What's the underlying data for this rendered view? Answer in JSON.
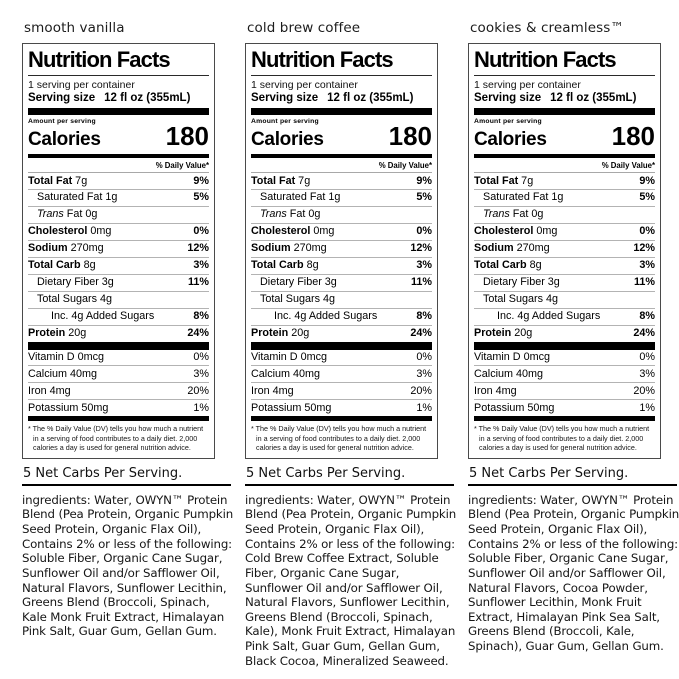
{
  "page": {
    "background": "#ffffff",
    "text_color": "#000000"
  },
  "label": {
    "title": "Nutrition Facts",
    "servings_per_container": "1 serving per container",
    "serving_size_label": "Serving size",
    "serving_size_value": "12 fl oz (355mL)",
    "amount_per_serving": "Amount per serving",
    "calories_label": "Calories",
    "calories_value": "180",
    "daily_value_header": "% Daily Value*",
    "rows": [
      {
        "b": "Total Fat",
        "i": "",
        "r": " 7g",
        "dv": "9%"
      },
      {
        "b": "",
        "i": "",
        "r": "Saturated Fat 1g",
        "dv": "5%"
      },
      {
        "b": "",
        "i": "Trans",
        "r": " Fat 0g",
        "dv": ""
      },
      {
        "b": "Cholesterol",
        "i": "",
        "r": " 0mg",
        "dv": "0%"
      },
      {
        "b": "Sodium",
        "i": "",
        "r": " 270mg",
        "dv": "12%"
      },
      {
        "b": "Total Carb",
        "i": "",
        "r": " 8g",
        "dv": "3%"
      },
      {
        "b": "",
        "i": "",
        "r": "Dietary Fiber 3g",
        "dv": "11%"
      },
      {
        "b": "",
        "i": "",
        "r": "Total Sugars 4g",
        "dv": ""
      },
      {
        "b": "",
        "i": "",
        "r": "Inc. 4g Added Sugars",
        "dv": "8%"
      },
      {
        "b": "Protein",
        "i": "",
        "r": " 20g",
        "dv": "24%"
      }
    ],
    "micros": [
      {
        "r": "Vitamin D 0mcg",
        "dv": "0%"
      },
      {
        "r": "Calcium 40mg",
        "dv": "3%"
      },
      {
        "r": "Iron 4mg",
        "dv": "20%"
      },
      {
        "r": "Potassium 50mg",
        "dv": "1%"
      }
    ],
    "footnote": "* The % Daily Value (DV) tells you how much a nutrient in a serving of food contributes to a daily diet. 2,000 calories a day is used for general nutrition advice."
  },
  "panels": [
    {
      "flavor": "smooth vanilla",
      "net_carbs": "5 Net Carbs Per Serving.",
      "ingredients": "ingredients: Water, OWYN™ Protein Blend (Pea Protein, Organic Pumpkin Seed Protein, Organic Flax Oil), Contains 2% or less of the following: Soluble Fiber, Organic Cane Sugar, Sunflower Oil and/or Safflower Oil, Natural Flavors, Sunflower Lecithin, Greens Blend (Broccoli, Spinach, Kale Monk Fruit Extract, Himalayan Pink Salt, Guar Gum, Gellan Gum."
    },
    {
      "flavor": "cold brew coffee",
      "net_carbs": "5 Net Carbs Per Serving.",
      "ingredients": "ingredients: Water, OWYN™ Protein Blend (Pea Protein, Organic Pumpkin Seed Protein, Organic Flax Oil), Contains 2% or less of the following: Cold Brew Coffee Extract, Soluble Fiber, Organic Cane Sugar, Sunflower Oil and/or Safflower Oil, Natural Flavors, Sunflower Lecithin, Greens Blend (Broccoli, Spinach, Kale), Monk Fruit Extract, Himalayan Pink Salt, Guar Gum, Gellan Gum, Black Cocoa, Mineralized Seaweed."
    },
    {
      "flavor": "cookies & creamless™",
      "net_carbs": "5 Net Carbs Per Serving.",
      "ingredients": "ingredients: Water, OWYN™ Protein Blend (Pea Protein, Organic Pumpkin Seed Protein, Organic Flax Oil), Contains 2% or less of the following: Soluble Fiber, Organic Cane Sugar, Sunflower Oil and/or Safflower Oil, Natural Flavors, Cocoa Powder, Sunflower Lecithin, Monk Fruit Extract, Himalayan Pink Sea Salt, Greens Blend (Broccoli, Kale, Spinach), Guar Gum, Gellan Gum."
    }
  ]
}
